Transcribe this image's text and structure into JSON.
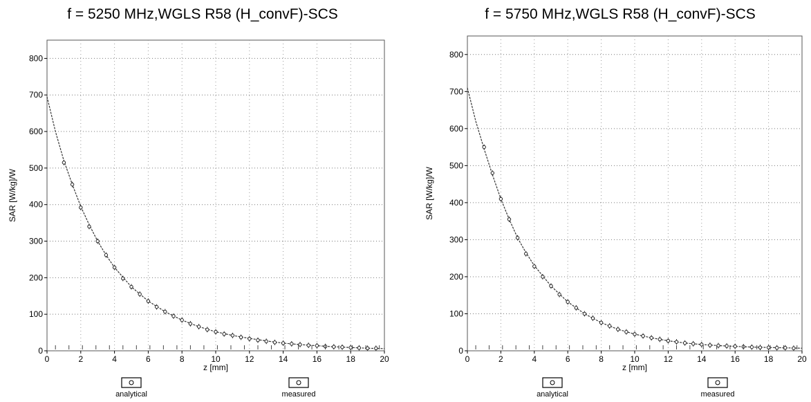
{
  "chart_data": [
    {
      "type": "line",
      "title": "f = 5250 MHz,WGLS R58 (H_convF)-SCS",
      "xlabel": "z [mm]",
      "ylabel": "SAR [W/kg]/W",
      "xlim": [
        0,
        20
      ],
      "ylim": [
        0,
        850
      ],
      "xticks": [
        0,
        2,
        4,
        6,
        8,
        10,
        12,
        14,
        16,
        18,
        20
      ],
      "yticks": [
        0,
        100,
        200,
        300,
        400,
        500,
        600,
        700,
        800
      ],
      "grid": true,
      "legend": [
        "analytical",
        "measured"
      ],
      "legend_position": "bottom",
      "series": [
        {
          "name": "analytical",
          "x": [
            0,
            0.5,
            1,
            1.5,
            2,
            2.5,
            3,
            3.5,
            4,
            5,
            6,
            7,
            8,
            9,
            10,
            11,
            12,
            13,
            14,
            15,
            16,
            17,
            18,
            19,
            20
          ],
          "values": [
            695,
            600,
            520,
            455,
            395,
            345,
            300,
            262,
            228,
            175,
            136,
            107,
            84,
            66,
            52,
            42,
            34,
            27,
            21,
            17,
            14,
            11,
            9,
            7,
            6
          ]
        },
        {
          "name": "measured",
          "x": [
            1,
            1.5,
            2,
            2.5,
            3,
            3.5,
            4,
            4.5,
            5,
            5.5,
            6,
            6.5,
            7,
            7.5,
            8,
            8.5,
            9,
            9.5,
            10,
            10.5,
            11,
            11.5,
            12,
            12.5,
            13,
            13.5,
            14,
            14.5,
            15,
            15.5,
            16,
            16.5,
            17,
            17.5,
            18,
            18.5,
            19,
            19.5
          ],
          "values": [
            515,
            455,
            392,
            340,
            300,
            262,
            228,
            198,
            175,
            155,
            136,
            120,
            107,
            95,
            84,
            74,
            66,
            58,
            52,
            46,
            42,
            37,
            33,
            29,
            26,
            23,
            21,
            19,
            17,
            15,
            14,
            12,
            11,
            10,
            9,
            8,
            7,
            7
          ]
        }
      ]
    },
    {
      "type": "line",
      "title": "f = 5750 MHz,WGLS R58 (H_convF)-SCS",
      "xlabel": "z [mm]",
      "ylabel": "SAR [W/kg]/W",
      "xlim": [
        0,
        20
      ],
      "ylim": [
        0,
        850
      ],
      "xticks": [
        0,
        2,
        4,
        6,
        8,
        10,
        12,
        14,
        16,
        18,
        20
      ],
      "yticks": [
        0,
        100,
        200,
        300,
        400,
        500,
        600,
        700,
        800
      ],
      "grid": true,
      "legend": [
        "analytical",
        "measured"
      ],
      "legend_position": "bottom",
      "series": [
        {
          "name": "analytical",
          "x": [
            0,
            0.5,
            1,
            1.5,
            2,
            2.5,
            3,
            3.5,
            4,
            5,
            6,
            7,
            8,
            9,
            10,
            11,
            12,
            13,
            14,
            15,
            16,
            17,
            18,
            19,
            20
          ],
          "values": [
            710,
            620,
            545,
            475,
            410,
            355,
            305,
            265,
            230,
            175,
            132,
            100,
            76,
            58,
            45,
            35,
            27,
            21,
            17,
            14,
            12,
            10,
            9,
            8,
            7
          ]
        },
        {
          "name": "measured",
          "x": [
            1,
            1.5,
            2,
            2.5,
            3,
            3.5,
            4,
            4.5,
            5,
            5.5,
            6,
            6.5,
            7,
            7.5,
            8,
            8.5,
            9,
            9.5,
            10,
            10.5,
            11,
            11.5,
            12,
            12.5,
            13,
            13.5,
            14,
            14.5,
            15,
            15.5,
            16,
            16.5,
            17,
            17.5,
            18,
            18.5,
            19,
            19.5
          ],
          "values": [
            550,
            480,
            410,
            355,
            305,
            262,
            228,
            200,
            175,
            152,
            132,
            116,
            100,
            88,
            76,
            67,
            58,
            51,
            45,
            40,
            35,
            31,
            27,
            24,
            21,
            19,
            17,
            15,
            14,
            13,
            12,
            11,
            10,
            9,
            9,
            8,
            8,
            7
          ]
        }
      ]
    }
  ]
}
